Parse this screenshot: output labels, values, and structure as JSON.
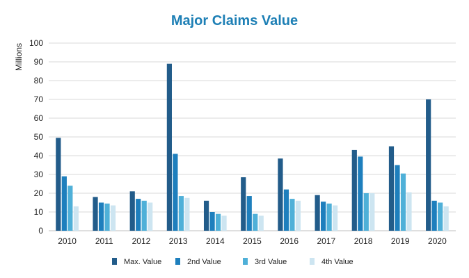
{
  "chart_data": {
    "type": "bar",
    "title": "Major Claims Value",
    "ylabel": "Millions",
    "xlabel": "",
    "ylim": [
      0,
      100
    ],
    "yticks": [
      0,
      10,
      20,
      30,
      40,
      50,
      60,
      70,
      80,
      90,
      100
    ],
    "grid": true,
    "legend_position": "bottom",
    "categories": [
      "2010",
      "2011",
      "2012",
      "2013",
      "2014",
      "2015",
      "2016",
      "2017",
      "2018",
      "2019",
      "2020"
    ],
    "series": [
      {
        "name": "Max. Value",
        "color": "#225c8a",
        "values": [
          49.5,
          18,
          21,
          89,
          16,
          28.5,
          38.5,
          19,
          43,
          45,
          70
        ]
      },
      {
        "name": "2nd Value",
        "color": "#1e7fbd",
        "values": [
          29,
          15,
          17,
          41,
          10,
          18.5,
          22,
          15.5,
          39.5,
          35,
          16
        ]
      },
      {
        "name": "3rd Value",
        "color": "#4fb0d8",
        "values": [
          24,
          14.5,
          16,
          18.5,
          9,
          9,
          17,
          14.5,
          20,
          30.5,
          15
        ]
      },
      {
        "name": "4th Value",
        "color": "#cde5f1",
        "values": [
          13,
          13.5,
          15,
          17.5,
          8,
          8,
          16,
          13.5,
          20,
          20.5,
          13
        ]
      }
    ]
  }
}
